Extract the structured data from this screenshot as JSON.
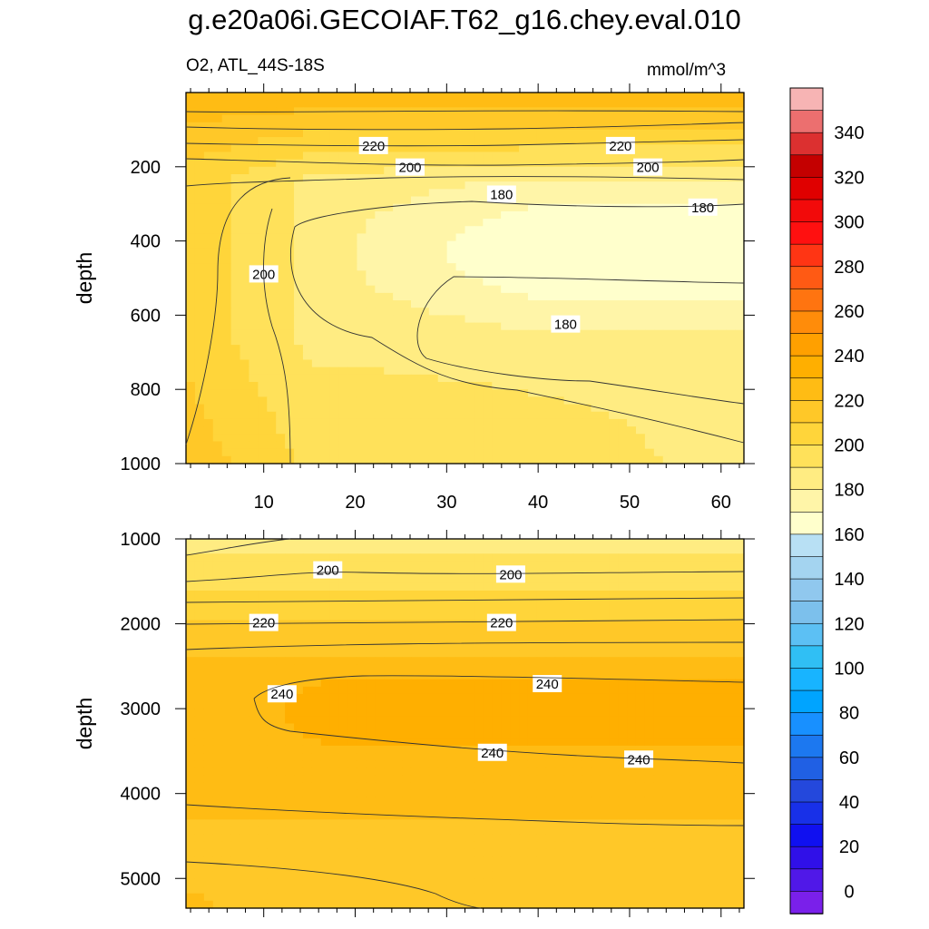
{
  "title": "g.e20a06i.GECOIAF.T62_g16.chey.eval.010",
  "left_subtitle": "O2, ATL_44S-18S",
  "right_subtitle": "mmol/m^3",
  "chart_data": [
    {
      "type": "contour",
      "panel": "upper",
      "xlabel": "",
      "ylabel": "depth",
      "xlim": [
        1.5,
        62.5
      ],
      "ylim": [
        1000,
        0
      ],
      "xticks": [
        10,
        20,
        30,
        40,
        50,
        60
      ],
      "yticks": [
        200,
        400,
        600,
        800,
        1000
      ],
      "contour_levels": [
        180,
        200,
        220
      ],
      "contour_labels": [
        {
          "text": "220",
          "x": 22,
          "y": 144
        },
        {
          "text": "220",
          "x": 49,
          "y": 144
        },
        {
          "text": "200",
          "x": 26,
          "y": 202
        },
        {
          "text": "200",
          "x": 52,
          "y": 202
        },
        {
          "text": "180",
          "x": 36,
          "y": 275
        },
        {
          "text": "180",
          "x": 58,
          "y": 310
        },
        {
          "text": "200",
          "x": 10,
          "y": 490
        },
        {
          "text": "180",
          "x": 43,
          "y": 625
        }
      ],
      "value_range": [
        170,
        245
      ]
    },
    {
      "type": "contour",
      "panel": "lower",
      "xlabel": "",
      "ylabel": "depth",
      "xlim": [
        1.5,
        62.5
      ],
      "ylim": [
        5350,
        1000
      ],
      "yticks": [
        1000,
        2000,
        3000,
        4000,
        5000
      ],
      "contour_levels": [
        200,
        220,
        240
      ],
      "contour_labels": [
        {
          "text": "200",
          "x": 17,
          "y": 1370
        },
        {
          "text": "200",
          "x": 37,
          "y": 1420
        },
        {
          "text": "220",
          "x": 10,
          "y": 1990
        },
        {
          "text": "220",
          "x": 36,
          "y": 1990
        },
        {
          "text": "240",
          "x": 12,
          "y": 2830
        },
        {
          "text": "240",
          "x": 41,
          "y": 2710
        },
        {
          "text": "240",
          "x": 35,
          "y": 3520
        },
        {
          "text": "240",
          "x": 51,
          "y": 3600
        }
      ],
      "value_range": [
        190,
        250
      ]
    }
  ],
  "colorbar": {
    "tick_labels": [
      "340",
      "320",
      "300",
      "280",
      "260",
      "240",
      "220",
      "200",
      "180",
      "160",
      "140",
      "120",
      "100",
      "80",
      "60",
      "40",
      "20",
      "0"
    ],
    "colors": [
      "#f7b4b4",
      "#ec6f6f",
      "#dc3030",
      "#c40000",
      "#e00000",
      "#f20a0a",
      "#ff1010",
      "#ff3514",
      "#ff5a14",
      "#ff7410",
      "#ff8c0a",
      "#ffa000",
      "#ffaf00",
      "#ffbc14",
      "#ffc828",
      "#ffd53a",
      "#ffe15a",
      "#ffec82",
      "#fff5a8",
      "#ffffcc",
      "#b8e0f4",
      "#a4d4f0",
      "#90c8ee",
      "#7cc0ec",
      "#5cc0f4",
      "#30bff4",
      "#18b4ff",
      "#00a4ff",
      "#1890ff",
      "#1c78f0",
      "#2060e4",
      "#2448dc",
      "#1830e8",
      "#1010f0",
      "#3010e8",
      "#5018e8",
      "#7a20ea"
    ]
  }
}
